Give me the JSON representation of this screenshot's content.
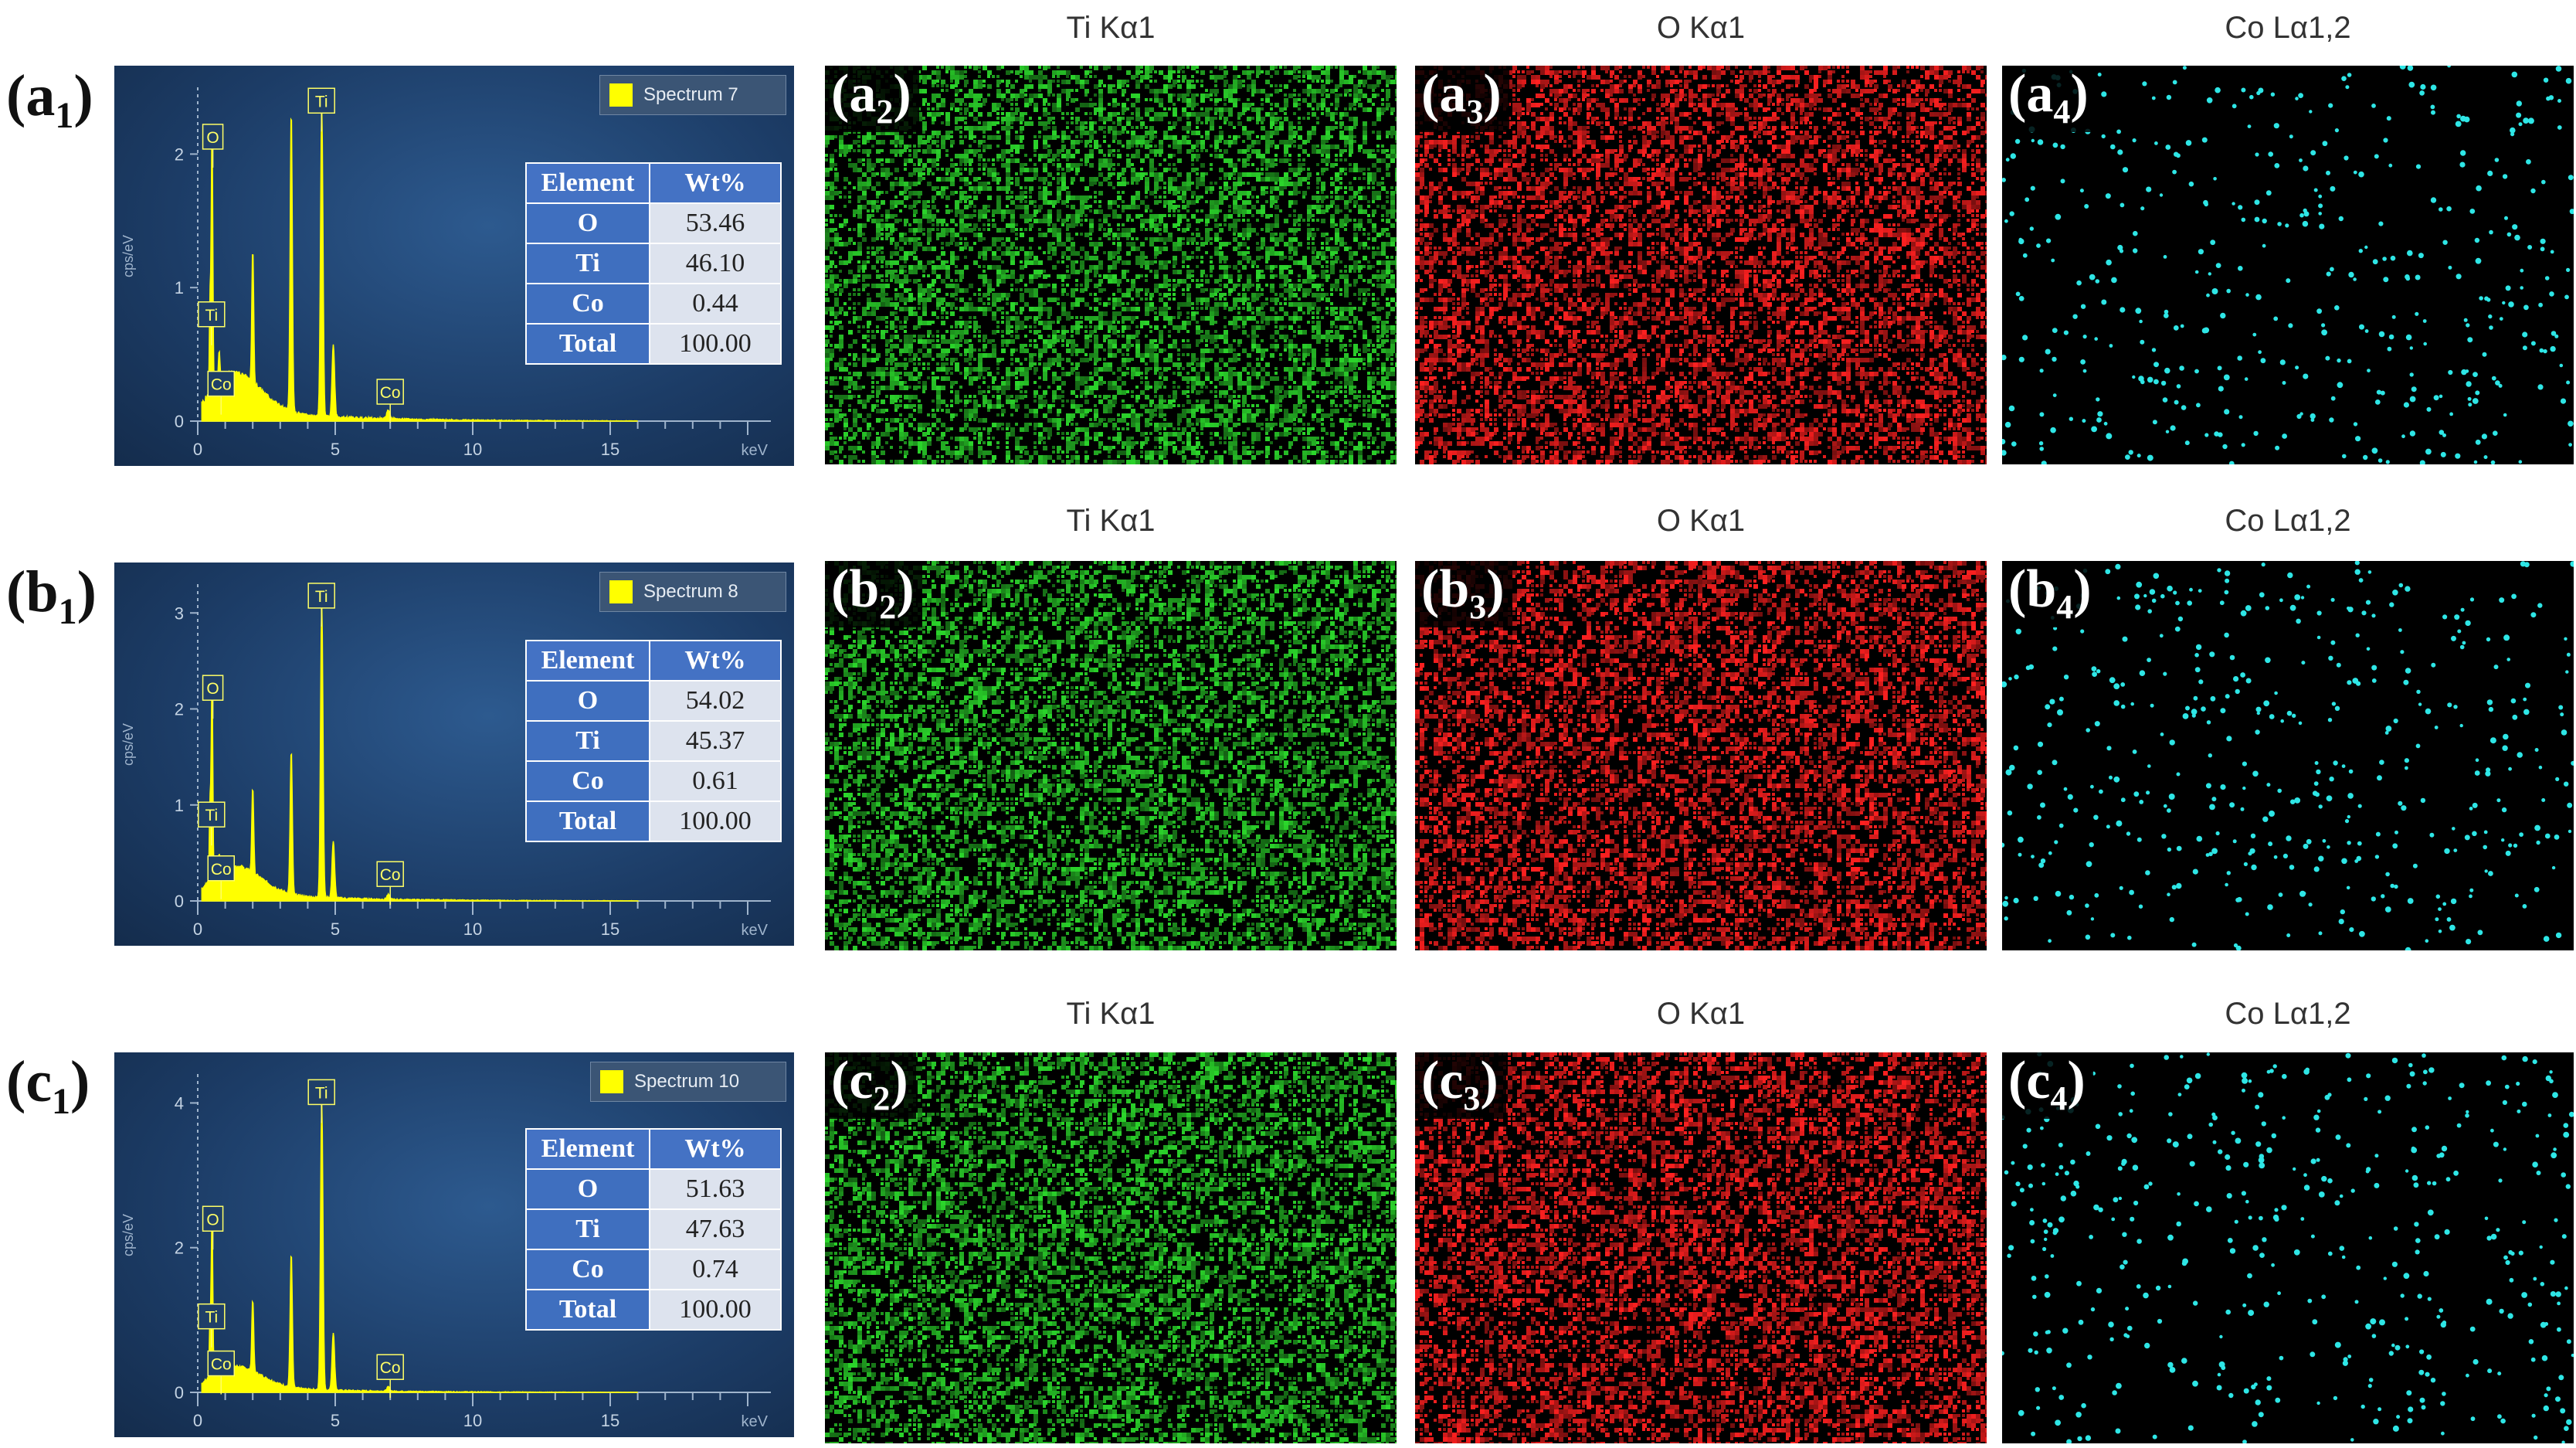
{
  "rows": [
    {
      "id": "a",
      "label": "a",
      "sub": "1",
      "spectrum": {
        "legend": "Spectrum 7",
        "ytick_labels": [
          "0",
          "1",
          "2"
        ],
        "ymax": 2.5,
        "xtick_labels": [
          "0",
          "5",
          "10",
          "15"
        ],
        "xunit": "keV",
        "yunit": "cps/eV",
        "peaks": [
          {
            "name": "O",
            "kev": 0.52,
            "h": 2.0
          },
          {
            "name": "Ti",
            "kev": 0.45,
            "h": 0.72
          },
          {
            "name": "Co",
            "kev": 0.78,
            "h": 0.22
          },
          {
            "name": "",
            "kev": 2.0,
            "h": 1.0
          },
          {
            "name": "",
            "kev": 3.4,
            "h": 2.25
          },
          {
            "name": "Ti",
            "kev": 4.51,
            "h": 2.3
          },
          {
            "name": "",
            "kev": 4.93,
            "h": 0.55
          },
          {
            "name": "Co",
            "kev": 6.93,
            "h": 0.07
          }
        ],
        "labels": [
          {
            "text": "O",
            "kev": 0.55,
            "y": 2.13
          },
          {
            "text": "Ti",
            "kev": 0.5,
            "y": 0.8
          },
          {
            "text": "Co",
            "kev": 0.85,
            "y": 0.28
          },
          {
            "text": "Ti",
            "kev": 4.5,
            "y": 2.4
          },
          {
            "text": "Co",
            "kev": 7.0,
            "y": 0.22
          }
        ]
      },
      "table": {
        "header": [
          "Element",
          "Wt%"
        ],
        "rows": [
          [
            "O",
            "53.46"
          ],
          [
            "Ti",
            "46.10"
          ],
          [
            "Co",
            "0.44"
          ],
          [
            "Total",
            "100.00"
          ]
        ]
      },
      "maps": [
        {
          "title": "Ti Kα1",
          "label": "a",
          "sub": "2",
          "color": "#2bd62b",
          "seed": 11
        },
        {
          "title": "O Kα1",
          "label": "a",
          "sub": "3",
          "color": "#ff2020",
          "seed": 12
        },
        {
          "title": "Co Lα1,2",
          "label": "a",
          "sub": "4",
          "color": "#2ee6e6",
          "seed": 13
        }
      ]
    },
    {
      "id": "b",
      "label": "b",
      "sub": "1",
      "spectrum": {
        "legend": "Spectrum 8",
        "ytick_labels": [
          "0",
          "1",
          "2",
          "3"
        ],
        "ymax": 3.3,
        "xtick_labels": [
          "0",
          "5",
          "10",
          "15"
        ],
        "xunit": "keV",
        "yunit": "cps/eV",
        "peaks": [
          {
            "name": "O",
            "kev": 0.52,
            "h": 2.1
          },
          {
            "name": "Ti",
            "kev": 0.45,
            "h": 0.85
          },
          {
            "name": "Co",
            "kev": 0.78,
            "h": 0.2
          },
          {
            "name": "",
            "kev": 2.0,
            "h": 0.9
          },
          {
            "name": "",
            "kev": 3.4,
            "h": 1.5
          },
          {
            "name": "Ti",
            "kev": 4.51,
            "h": 3.05
          },
          {
            "name": "",
            "kev": 4.93,
            "h": 0.6
          },
          {
            "name": "Co",
            "kev": 6.93,
            "h": 0.05
          }
        ],
        "labels": [
          {
            "text": "O",
            "kev": 0.55,
            "y": 2.22
          },
          {
            "text": "Ti",
            "kev": 0.5,
            "y": 0.9
          },
          {
            "text": "Co",
            "kev": 0.85,
            "y": 0.34
          },
          {
            "text": "Ti",
            "kev": 4.5,
            "y": 3.18
          },
          {
            "text": "Co",
            "kev": 7.0,
            "y": 0.28
          }
        ]
      },
      "table": {
        "header": [
          "Element",
          "Wt%"
        ],
        "rows": [
          [
            "O",
            "54.02"
          ],
          [
            "Ti",
            "45.37"
          ],
          [
            "Co",
            "0.61"
          ],
          [
            "Total",
            "100.00"
          ]
        ]
      },
      "maps": [
        {
          "title": "Ti Kα1",
          "label": "b",
          "sub": "2",
          "color": "#2bd62b",
          "seed": 21
        },
        {
          "title": "O Kα1",
          "label": "b",
          "sub": "3",
          "color": "#ff2020",
          "seed": 22
        },
        {
          "title": "Co Lα1,2",
          "label": "b",
          "sub": "4",
          "color": "#2ee6e6",
          "seed": 23
        }
      ]
    },
    {
      "id": "c",
      "label": "c",
      "sub": "1",
      "spectrum": {
        "legend": "Spectrum 10",
        "ytick_labels": [
          "0",
          "2",
          "4"
        ],
        "ymax": 4.4,
        "xtick_labels": [
          "0",
          "5",
          "10",
          "15"
        ],
        "xunit": "keV",
        "yunit": "cps/eV",
        "peaks": [
          {
            "name": "O",
            "kev": 0.52,
            "h": 2.25
          },
          {
            "name": "Ti",
            "kev": 0.45,
            "h": 0.85
          },
          {
            "name": "Co",
            "kev": 0.78,
            "h": 0.25
          },
          {
            "name": "",
            "kev": 2.0,
            "h": 1.0
          },
          {
            "name": "",
            "kev": 3.4,
            "h": 1.85
          },
          {
            "name": "Ti",
            "kev": 4.51,
            "h": 3.95
          },
          {
            "name": "",
            "kev": 4.93,
            "h": 0.8
          },
          {
            "name": "Co",
            "kev": 6.93,
            "h": 0.06
          }
        ],
        "labels": [
          {
            "text": "O",
            "kev": 0.55,
            "y": 2.4
          },
          {
            "text": "Ti",
            "kev": 0.5,
            "y": 1.05
          },
          {
            "text": "Co",
            "kev": 0.85,
            "y": 0.4
          },
          {
            "text": "Ti",
            "kev": 4.5,
            "y": 4.15
          },
          {
            "text": "Co",
            "kev": 7.0,
            "y": 0.35
          }
        ]
      },
      "table": {
        "header": [
          "Element",
          "Wt%"
        ],
        "rows": [
          [
            "O",
            "51.63"
          ],
          [
            "Ti",
            "47.63"
          ],
          [
            "Co",
            "0.74"
          ],
          [
            "Total",
            "100.00"
          ]
        ]
      },
      "maps": [
        {
          "title": "Ti Kα1",
          "label": "c",
          "sub": "2",
          "color": "#2bd62b",
          "seed": 31
        },
        {
          "title": "O Kα1",
          "label": "c",
          "sub": "3",
          "color": "#ff2020",
          "seed": 32
        },
        {
          "title": "Co Lα1,2",
          "label": "c",
          "sub": "4",
          "color": "#2ee6e6",
          "seed": 33
        }
      ]
    }
  ]
}
